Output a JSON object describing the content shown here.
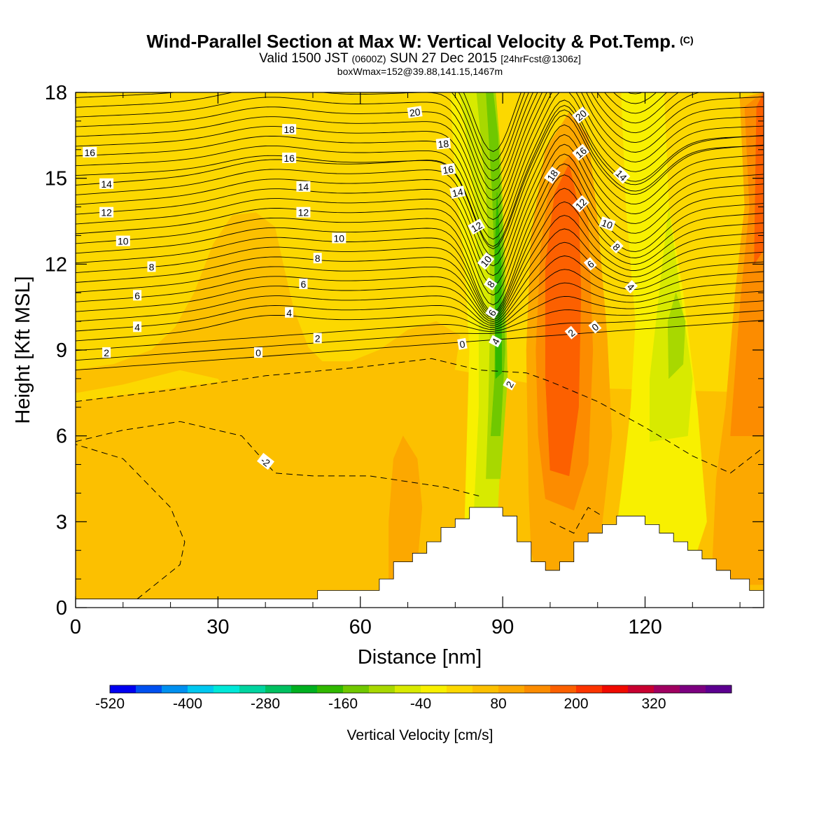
{
  "title": {
    "main": "Wind-Parallel Section at Max W: Vertical Velocity & Pot.Temp.",
    "copyright": "(C)",
    "valid_prefix": "Valid 1500 JST",
    "valid_utc": "(0600Z)",
    "valid_date": "SUN 27 Dec 2015",
    "forecast": "[24hrFcst@1306z]",
    "boxmax": "boxWmax=152@39.88,141.15,1467m"
  },
  "chart_data": {
    "type": "heatmap",
    "xlabel": "Distance [nm]",
    "ylabel": "Height [Kft MSL]",
    "xlim": [
      0,
      145
    ],
    "ylim": [
      0,
      18
    ],
    "x_ticks": [
      "0",
      "30",
      "60",
      "90",
      "120"
    ],
    "x_tick_values": [
      0,
      30,
      60,
      90,
      120
    ],
    "y_ticks": [
      "0",
      "3",
      "6",
      "9",
      "12",
      "15",
      "18"
    ],
    "y_tick_values": [
      0,
      3,
      6,
      9,
      12,
      15,
      18
    ],
    "colorbar": {
      "label": "Vertical Velocity [cm/s]",
      "labels": [
        "-520",
        "-400",
        "-280",
        "-160",
        "-40",
        "80",
        "200",
        "320"
      ],
      "label_values": [
        -520,
        -400,
        -280,
        -160,
        -40,
        80,
        200,
        320
      ],
      "bins": [
        -520,
        -480,
        -440,
        -400,
        -360,
        -320,
        -280,
        -240,
        -200,
        -160,
        -120,
        -80,
        -40,
        0,
        40,
        80,
        120,
        160,
        200,
        240,
        280,
        320,
        360
      ],
      "colors": [
        "#0000f0",
        "#0050f0",
        "#0090f0",
        "#00c8f0",
        "#00e8d8",
        "#00d4a0",
        "#00c060",
        "#00b020",
        "#30b800",
        "#70c800",
        "#a8d800",
        "#d8ea00",
        "#f8f000",
        "#fcd800",
        "#fcc000",
        "#fca800",
        "#fc8c00",
        "#fc6000",
        "#fc3400",
        "#f00a00",
        "#c80030",
        "#a00060",
        "#7c0080",
        "#5c0090"
      ]
    },
    "vertical_velocity_regions": [
      {
        "bin": "0..40",
        "polygon": [
          [
            0,
            0.3
          ],
          [
            145,
            0.3
          ],
          [
            145,
            18
          ],
          [
            0,
            18
          ]
        ]
      },
      {
        "bin": "40..80",
        "polygon": [
          [
            0,
            7.5
          ],
          [
            10,
            7.8
          ],
          [
            22,
            8.3
          ],
          [
            30,
            8
          ],
          [
            35,
            7
          ],
          [
            40,
            5
          ],
          [
            48,
            4.6
          ],
          [
            58,
            4.5
          ],
          [
            66,
            4.6
          ],
          [
            72,
            4.8
          ],
          [
            76,
            5.5
          ],
          [
            78,
            7.2
          ],
          [
            80,
            8.4
          ],
          [
            81,
            9.5
          ],
          [
            76,
            10
          ],
          [
            70,
            9.7
          ],
          [
            64,
            9
          ],
          [
            58,
            8.6
          ],
          [
            52,
            8.6
          ],
          [
            49,
            9.1
          ],
          [
            46,
            10.4
          ],
          [
            44,
            11.8
          ],
          [
            42,
            13.3
          ],
          [
            38,
            13.8
          ],
          [
            33,
            13.7
          ],
          [
            29,
            12.7
          ],
          [
            25,
            11
          ],
          [
            21,
            9.8
          ],
          [
            16,
            9
          ],
          [
            8,
            8.5
          ],
          [
            0,
            8.3
          ]
        ]
      },
      {
        "bin": "40..80",
        "polygon": [
          [
            0,
            0.3
          ],
          [
            145,
            0.3
          ],
          [
            145,
            7.5
          ],
          [
            100,
            7.7
          ],
          [
            80,
            8.3
          ],
          [
            70,
            8.3
          ],
          [
            40,
            8.1
          ],
          [
            0,
            7.2
          ]
        ]
      },
      {
        "bin": "80..120",
        "polygon": [
          [
            66,
            0.8
          ],
          [
            72,
            1.5
          ],
          [
            73,
            3.5
          ],
          [
            72,
            5.2
          ],
          [
            69,
            6
          ],
          [
            67,
            5.2
          ],
          [
            66,
            3
          ]
        ]
      },
      {
        "bin": "80..120",
        "polygon": [
          [
            97,
            1.3
          ],
          [
            109,
            1.3
          ],
          [
            111,
            3
          ],
          [
            113,
            6
          ],
          [
            112,
            9.5
          ],
          [
            110,
            13.5
          ],
          [
            108,
            16.5
          ],
          [
            104,
            17.3
          ],
          [
            99,
            16
          ],
          [
            96,
            13
          ],
          [
            95,
            9
          ],
          [
            95.5,
            4
          ],
          [
            96,
            2
          ]
        ]
      },
      {
        "bin": "80..120",
        "polygon": [
          [
            134,
            0.8
          ],
          [
            145,
            0.8
          ],
          [
            145,
            18
          ],
          [
            140,
            17.8
          ],
          [
            141,
            14
          ],
          [
            139,
            11
          ],
          [
            137,
            7
          ],
          [
            135,
            4.5
          ]
        ]
      },
      {
        "bin": "120..160",
        "polygon": [
          [
            99,
            3.8
          ],
          [
            105,
            3.4
          ],
          [
            108,
            5
          ],
          [
            109,
            9
          ],
          [
            108,
            13.5
          ],
          [
            105,
            16
          ],
          [
            100,
            15
          ],
          [
            98,
            12.5
          ],
          [
            97,
            9
          ],
          [
            97.5,
            6
          ]
        ]
      },
      {
        "bin": "120..160",
        "polygon": [
          [
            138,
            6
          ],
          [
            145,
            6
          ],
          [
            145,
            18
          ],
          [
            141,
            17.5
          ],
          [
            142,
            14
          ],
          [
            140,
            10.5
          ]
        ]
      },
      {
        "bin": "160..200",
        "polygon": [
          [
            100,
            4.8
          ],
          [
            104,
            4.6
          ],
          [
            106,
            7
          ],
          [
            106.5,
            11
          ],
          [
            106,
            14
          ],
          [
            104,
            15.5
          ],
          [
            101,
            14.5
          ],
          [
            99,
            12
          ],
          [
            99,
            8
          ]
        ]
      },
      {
        "bin": "160..200",
        "polygon": [
          [
            143,
            12
          ],
          [
            145,
            12.5
          ],
          [
            145,
            18
          ],
          [
            143.5,
            17.5
          ]
        ]
      },
      {
        "bin": "0..-40",
        "polygon": [
          [
            82,
            3
          ],
          [
            86,
            2.5
          ],
          [
            87,
            6
          ],
          [
            87,
            11.5
          ],
          [
            84,
            15
          ],
          [
            83,
            18
          ],
          [
            79,
            18
          ],
          [
            80,
            15
          ],
          [
            82,
            12
          ],
          [
            83,
            9
          ],
          [
            82.5,
            6
          ]
        ]
      },
      {
        "bin": "0..-40",
        "polygon": [
          [
            113,
            1.5
          ],
          [
            122,
            2.5
          ],
          [
            130,
            1.5
          ],
          [
            133,
            3
          ],
          [
            131,
            7
          ],
          [
            128,
            11
          ],
          [
            125,
            14
          ],
          [
            124,
            18
          ],
          [
            115,
            18
          ],
          [
            116,
            14
          ],
          [
            118,
            10
          ],
          [
            117,
            7
          ],
          [
            115,
            4
          ]
        ]
      },
      {
        "bin": "-40..-80",
        "polygon": [
          [
            84,
            3.5
          ],
          [
            89,
            3.5
          ],
          [
            90,
            7
          ],
          [
            89,
            12.5
          ],
          [
            87,
            16
          ],
          [
            86,
            18
          ],
          [
            81,
            18
          ],
          [
            84,
            14.5
          ],
          [
            85,
            11
          ],
          [
            85,
            7
          ]
        ]
      },
      {
        "bin": "-40..-80",
        "polygon": [
          [
            121,
            5.8
          ],
          [
            129,
            6
          ],
          [
            130,
            8
          ],
          [
            127,
            11.5
          ],
          [
            125,
            14
          ],
          [
            123,
            11
          ],
          [
            121,
            8
          ]
        ]
      },
      {
        "bin": "-80..-120",
        "polygon": [
          [
            86.5,
            4.5
          ],
          [
            89.5,
            4.5
          ],
          [
            91,
            8
          ],
          [
            90.5,
            12
          ],
          [
            89.5,
            16
          ],
          [
            88.5,
            18
          ],
          [
            84.5,
            18
          ],
          [
            86.5,
            14.5
          ],
          [
            87.5,
            11
          ],
          [
            87,
            7
          ]
        ]
      },
      {
        "bin": "-80..-120",
        "polygon": [
          [
            125,
            8
          ],
          [
            128,
            8.5
          ],
          [
            128.5,
            10
          ],
          [
            126.5,
            11
          ],
          [
            124.8,
            10
          ]
        ]
      },
      {
        "bin": "-120..-160",
        "polygon": [
          [
            87.5,
            6
          ],
          [
            89.5,
            6
          ],
          [
            90.5,
            9
          ],
          [
            90,
            13
          ],
          [
            89,
            16.5
          ],
          [
            88,
            18
          ],
          [
            86.5,
            18
          ],
          [
            87.8,
            14.5
          ],
          [
            88.5,
            11
          ],
          [
            88.3,
            8
          ]
        ]
      },
      {
        "bin": "-160..-200",
        "polygon": [
          [
            88.5,
            8
          ],
          [
            89.8,
            8.2
          ],
          [
            89.7,
            12
          ],
          [
            88.8,
            14.5
          ],
          [
            88.3,
            12
          ]
        ]
      }
    ],
    "theta_contour_labels": [
      {
        "text": "20",
        "x": 71.5,
        "y": 17.3,
        "angle": -8
      },
      {
        "text": "18",
        "x": 45,
        "y": 16.7,
        "angle": 0
      },
      {
        "text": "18",
        "x": 77.5,
        "y": 16.2,
        "angle": -6
      },
      {
        "text": "16",
        "x": 3,
        "y": 15.9,
        "angle": 0
      },
      {
        "text": "16",
        "x": 45,
        "y": 15.7,
        "angle": 0
      },
      {
        "text": "16",
        "x": 78.5,
        "y": 15.3,
        "angle": -8
      },
      {
        "text": "14",
        "x": 6.5,
        "y": 14.8,
        "angle": 0
      },
      {
        "text": "14",
        "x": 48,
        "y": 14.7,
        "angle": 0
      },
      {
        "text": "14",
        "x": 80.5,
        "y": 14.5,
        "angle": -12
      },
      {
        "text": "12",
        "x": 6.5,
        "y": 13.8,
        "angle": 0
      },
      {
        "text": "12",
        "x": 48,
        "y": 13.8,
        "angle": 0
      },
      {
        "text": "12",
        "x": 84.5,
        "y": 13.3,
        "angle": -30
      },
      {
        "text": "10",
        "x": 10,
        "y": 12.8,
        "angle": 0
      },
      {
        "text": "10",
        "x": 55.5,
        "y": 12.9,
        "angle": 0
      },
      {
        "text": "10",
        "x": 86.5,
        "y": 12.1,
        "angle": -50
      },
      {
        "text": "8",
        "x": 16,
        "y": 11.9,
        "angle": 0
      },
      {
        "text": "8",
        "x": 51,
        "y": 12.2,
        "angle": 0
      },
      {
        "text": "8",
        "x": 87.5,
        "y": 11.3,
        "angle": -55
      },
      {
        "text": "6",
        "x": 13,
        "y": 10.9,
        "angle": 0
      },
      {
        "text": "6",
        "x": 48,
        "y": 11.3,
        "angle": 0
      },
      {
        "text": "6",
        "x": 87.8,
        "y": 10.3,
        "angle": -58
      },
      {
        "text": "4",
        "x": 13,
        "y": 9.8,
        "angle": 0
      },
      {
        "text": "4",
        "x": 45,
        "y": 10.3,
        "angle": 0
      },
      {
        "text": "4",
        "x": 88.5,
        "y": 9.3,
        "angle": -62
      },
      {
        "text": "2",
        "x": 6.5,
        "y": 8.9,
        "angle": 0
      },
      {
        "text": "2",
        "x": 51,
        "y": 9.4,
        "angle": 0
      },
      {
        "text": "2",
        "x": 91.5,
        "y": 7.8,
        "angle": -60
      },
      {
        "text": "0",
        "x": 38.5,
        "y": 8.9,
        "angle": 0
      },
      {
        "text": "0",
        "x": 81.5,
        "y": 9.2,
        "angle": -10
      },
      {
        "text": "20",
        "x": 106.5,
        "y": 17.2,
        "angle": -40
      },
      {
        "text": "18",
        "x": 100.5,
        "y": 15.1,
        "angle": -55
      },
      {
        "text": "16",
        "x": 106.5,
        "y": 15.9,
        "angle": -40
      },
      {
        "text": "14",
        "x": 115,
        "y": 15.1,
        "angle": 45
      },
      {
        "text": "12",
        "x": 106.5,
        "y": 14.1,
        "angle": -45
      },
      {
        "text": "10",
        "x": 112,
        "y": 13.4,
        "angle": 20
      },
      {
        "text": "8",
        "x": 114,
        "y": 12.6,
        "angle": 45
      },
      {
        "text": "6",
        "x": 108.5,
        "y": 12,
        "angle": -40
      },
      {
        "text": "4",
        "x": 117,
        "y": 11.2,
        "angle": 45
      },
      {
        "text": "2",
        "x": 104.5,
        "y": 9.6,
        "angle": -40
      },
      {
        "text": "0",
        "x": 109.5,
        "y": 9.8,
        "angle": -40
      },
      {
        "text": "-2",
        "x": 40,
        "y": 5.1,
        "angle": 38
      }
    ],
    "terrain_profile": [
      [
        0,
        0.3
      ],
      [
        51,
        0.3
      ],
      [
        51,
        0.6
      ],
      [
        60,
        0.6
      ],
      [
        60,
        0.6
      ],
      [
        64,
        0.6
      ],
      [
        64,
        1.0
      ],
      [
        67,
        1.0
      ],
      [
        67,
        1.6
      ],
      [
        71,
        1.6
      ],
      [
        71,
        1.9
      ],
      [
        74,
        1.9
      ],
      [
        74,
        2.3
      ],
      [
        77,
        2.3
      ],
      [
        77,
        2.8
      ],
      [
        80,
        2.8
      ],
      [
        80,
        3.1
      ],
      [
        83,
        3.1
      ],
      [
        83,
        3.5
      ],
      [
        90,
        3.5
      ],
      [
        90,
        3.2
      ],
      [
        93,
        3.2
      ],
      [
        93,
        2.3
      ],
      [
        96,
        2.3
      ],
      [
        96,
        1.6
      ],
      [
        99,
        1.6
      ],
      [
        99,
        1.3
      ],
      [
        102,
        1.3
      ],
      [
        102,
        1.6
      ],
      [
        105,
        1.6
      ],
      [
        105,
        2.3
      ],
      [
        108,
        2.3
      ],
      [
        108,
        2.6
      ],
      [
        111,
        2.6
      ],
      [
        111,
        2.9
      ],
      [
        114,
        2.9
      ],
      [
        114,
        3.2
      ],
      [
        120,
        3.2
      ],
      [
        120,
        2.9
      ],
      [
        123,
        2.9
      ],
      [
        123,
        2.6
      ],
      [
        126,
        2.6
      ],
      [
        126,
        2.3
      ],
      [
        129,
        2.3
      ],
      [
        129,
        2.0
      ],
      [
        132,
        2.0
      ],
      [
        132,
        1.7
      ],
      [
        135,
        1.7
      ],
      [
        135,
        1.3
      ],
      [
        138,
        1.3
      ],
      [
        138,
        1.0
      ],
      [
        142,
        1.0
      ],
      [
        142,
        0.6
      ],
      [
        145,
        0.6
      ]
    ]
  }
}
